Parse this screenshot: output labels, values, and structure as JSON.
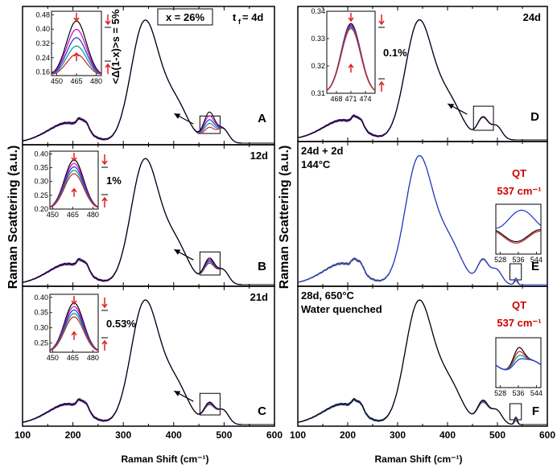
{
  "figure": {
    "y_label": "Raman Scattering (a.u.)",
    "x_label": "Raman Shift (cm⁻¹)"
  },
  "colors": {
    "series": [
      "#000000",
      "#cc00cc",
      "#2233cc",
      "#00998a",
      "#cc2222"
    ],
    "arrow_red": "#dd2222",
    "qt_red": "#cc0000"
  },
  "chart_data": [
    {
      "id": "A",
      "type": "line",
      "letter": "A",
      "xlim": [
        100,
        600
      ],
      "ylim": [
        0,
        1.05
      ],
      "labels": [
        "x = 26%",
        "t",
        "f",
        " = 4d"
      ],
      "series_count": 5,
      "inset": {
        "xlim": [
          446,
          484
        ],
        "ylim": [
          0.14,
          0.5
        ],
        "xticks": [
          "450",
          "465",
          "480"
        ],
        "yticks": [
          "0.48",
          "0.40",
          "0.32",
          "0.24",
          "0.16"
        ],
        "annotation": "<Δ(1-x)>s = 5%"
      }
    },
    {
      "id": "B",
      "type": "line",
      "letter": "B",
      "xlim": [
        100,
        600
      ],
      "ylim": [
        0,
        1.05
      ],
      "labels": [
        "12d"
      ],
      "series_count": 5,
      "inset": {
        "xlim": [
          448,
          484
        ],
        "ylim": [
          0.2,
          0.41
        ],
        "xticks": [
          "450",
          "465",
          "480"
        ],
        "yticks": [
          "0.40",
          "0.35",
          "0.30",
          "0.25",
          "0.20"
        ],
        "annotation": "1%"
      }
    },
    {
      "id": "C",
      "type": "line",
      "letter": "C",
      "xlim": [
        100,
        600
      ],
      "ylim": [
        0,
        1.05
      ],
      "labels": [
        "21d"
      ],
      "series_count": 5,
      "inset": {
        "xlim": [
          448,
          484
        ],
        "ylim": [
          0.22,
          0.41
        ],
        "xticks": [
          "450",
          "465",
          "480"
        ],
        "yticks": [
          "0.40",
          "0.35",
          "0.30",
          "0.25"
        ],
        "annotation": "0.53%"
      }
    },
    {
      "id": "D",
      "type": "line",
      "letter": "D",
      "xlim": [
        100,
        600
      ],
      "ylim": [
        0,
        1.05
      ],
      "labels": [
        "24d"
      ],
      "series_count": 5,
      "inset": {
        "xlim": [
          466,
          476
        ],
        "ylim": [
          0.31,
          0.34
        ],
        "xticks": [
          "468",
          "471",
          "474"
        ],
        "yticks": [
          "0.34",
          "0.33",
          "0.32",
          "0.31"
        ],
        "annotation": "0.1%"
      }
    },
    {
      "id": "E",
      "type": "line",
      "letter": "E",
      "xlim": [
        100,
        600
      ],
      "ylim": [
        0,
        1.05
      ],
      "labels": [
        "24d + 2d",
        "144°C"
      ],
      "qt_label": "QT",
      "qt_freq": "537 cm⁻¹",
      "series_count": 3,
      "inset": {
        "xlim": [
          526,
          546
        ],
        "xticks": [
          "528",
          "536",
          "544"
        ]
      }
    },
    {
      "id": "F",
      "type": "line",
      "letter": "F",
      "xlim": [
        100,
        600
      ],
      "ylim": [
        0,
        1.05
      ],
      "labels": [
        "28d, 650°C",
        "Water quenched"
      ],
      "qt_label": "QT",
      "qt_freq": "537 cm⁻¹",
      "series_count": 4,
      "inset": {
        "xlim": [
          526,
          546
        ],
        "xticks": [
          "528",
          "536",
          "544"
        ]
      }
    }
  ],
  "bottom_axis_ticks": [
    "100",
    "200",
    "300",
    "400",
    "500",
    "600"
  ]
}
